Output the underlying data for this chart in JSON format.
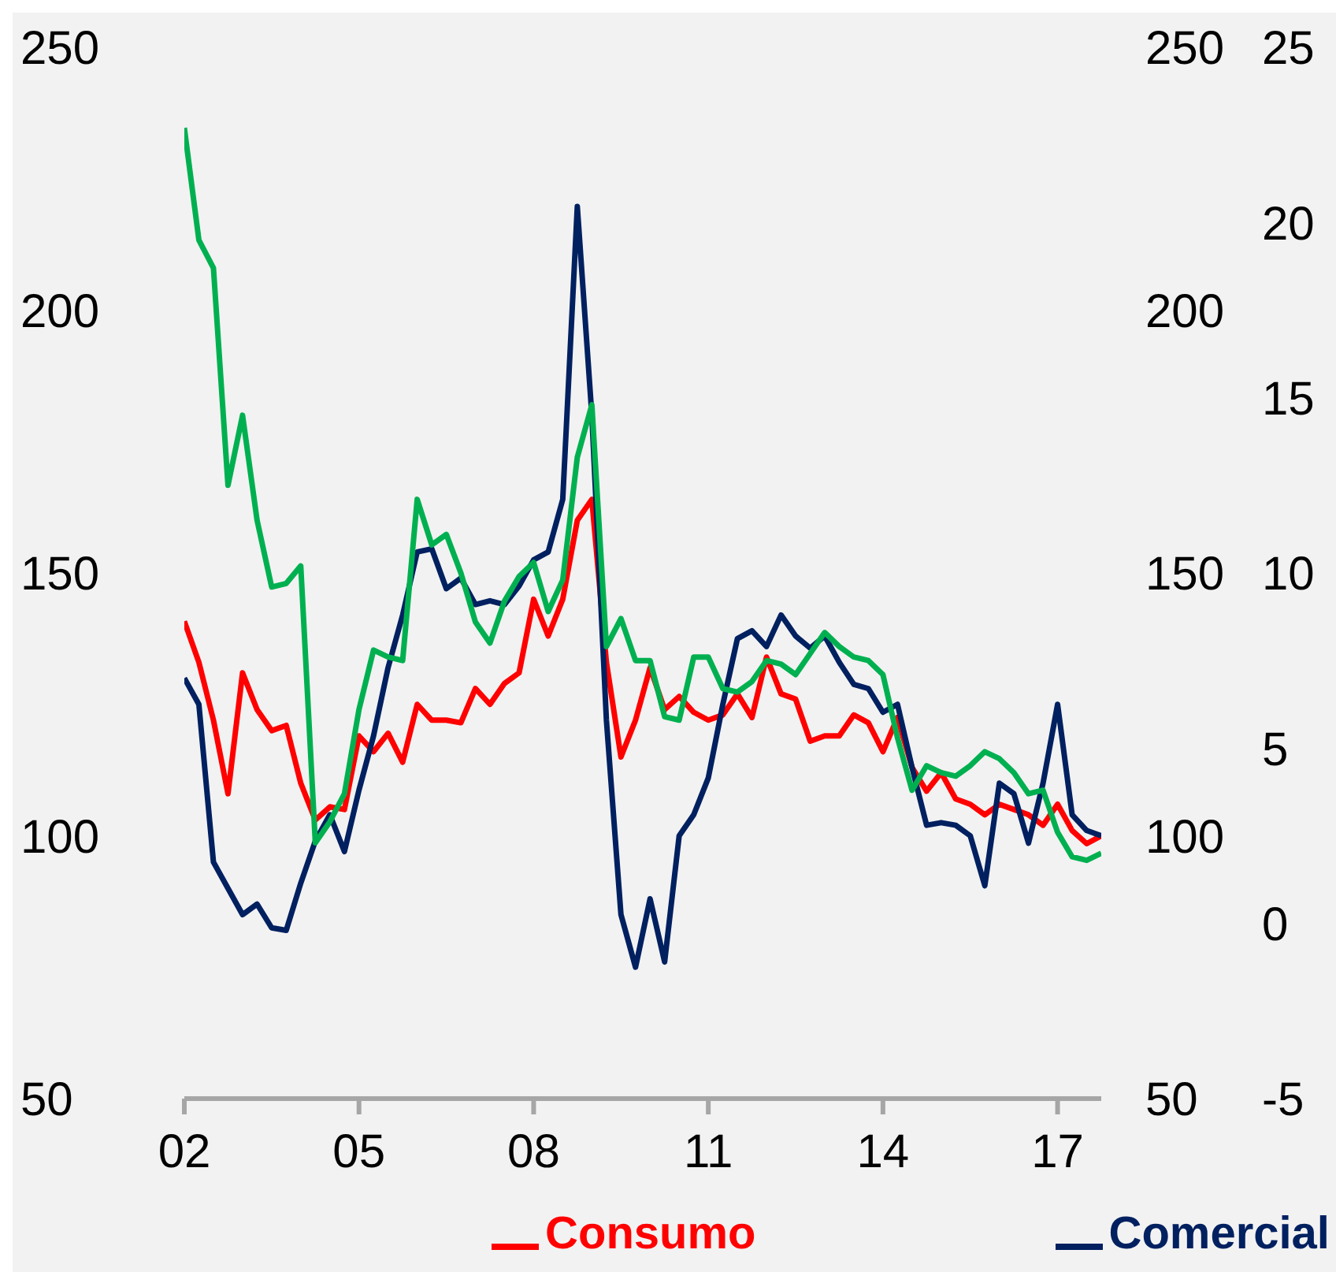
{
  "chart_data": {
    "type": "line",
    "x": [
      2002,
      2002.25,
      2002.5,
      2002.75,
      2003,
      2003.25,
      2003.5,
      2003.75,
      2004,
      2004.25,
      2004.5,
      2004.75,
      2005,
      2005.25,
      2005.5,
      2005.75,
      2006,
      2006.25,
      2006.5,
      2006.75,
      2007,
      2007.25,
      2007.5,
      2007.75,
      2008,
      2008.25,
      2008.5,
      2008.75,
      2009,
      2009.25,
      2009.5,
      2009.75,
      2010,
      2010.25,
      2010.5,
      2010.75,
      2011,
      2011.25,
      2011.5,
      2011.75,
      2012,
      2012.25,
      2012.5,
      2012.75,
      2013,
      2013.25,
      2013.5,
      2013.75,
      2014,
      2014.25,
      2014.5,
      2014.75,
      2015,
      2015.25,
      2015.5,
      2015.75,
      2016,
      2016.25,
      2016.5,
      2016.75,
      2017,
      2017.25,
      2017.5,
      2017.75
    ],
    "series": [
      {
        "name": "Consumo",
        "color": "#ff0000",
        "axis": "y",
        "values": [
          140.8,
          133,
          122,
          108,
          131,
          124,
          120,
          121,
          110,
          103,
          105.5,
          105,
          119,
          116,
          119.5,
          114,
          125,
          122,
          122,
          121.5,
          128,
          125,
          129,
          131,
          145,
          138,
          145,
          160,
          164,
          133,
          115,
          122,
          132,
          124,
          126.5,
          123.5,
          122,
          123,
          127,
          122.5,
          134,
          127,
          126,
          118,
          119,
          119,
          123,
          121.5,
          116,
          122.5,
          113,
          108.5,
          112,
          107,
          106,
          104,
          106,
          105,
          104,
          102,
          106,
          101,
          98.5,
          100
        ]
      },
      {
        "name": "Comercial",
        "color": "#002060",
        "axis": "y2",
        "values": [
          130,
          125,
          95,
          90,
          85,
          87,
          82.5,
          82,
          91,
          99,
          104,
          97,
          108.7,
          119,
          132,
          142,
          154,
          154.6,
          147,
          149,
          144,
          144.7,
          144,
          147.5,
          152.5,
          154,
          164,
          219.7,
          180,
          122,
          85,
          75,
          88,
          76,
          100,
          104,
          111,
          125,
          137.5,
          139,
          136,
          142,
          138,
          135.7,
          138,
          133,
          128.8,
          128,
          123.5,
          125,
          113,
          102,
          102.5,
          102,
          100,
          90.5,
          110,
          108,
          98.6,
          110,
          125,
          104,
          101,
          100
        ]
      },
      {
        "color": "#00b050",
        "axis": "y3",
        "values": [
          22.7,
          19.5,
          18.7,
          12.5,
          14.5,
          11.5,
          9.6,
          9.7,
          10.2,
          2.3,
          2.9,
          3.7,
          6.1,
          7.8,
          7.6,
          7.5,
          12.1,
          10.8,
          11.1,
          10.0,
          8.6,
          8.0,
          9.2,
          9.9,
          10.3,
          8.9,
          9.8,
          13.3,
          14.8,
          7.9,
          8.7,
          7.5,
          7.5,
          5.9,
          5.8,
          7.6,
          7.6,
          6.7,
          6.6,
          6.9,
          7.5,
          7.4,
          7.1,
          7.7,
          8.3,
          7.9,
          7.6,
          7.5,
          7.1,
          5.3,
          3.8,
          4.5,
          4.3,
          4.2,
          4.5,
          4.9,
          4.7,
          4.3,
          3.7,
          3.8,
          2.6,
          1.9,
          1.8,
          2.0
        ]
      }
    ],
    "xlim": [
      2002,
      2017.75
    ],
    "xticks": [
      {
        "value": 2002,
        "label": "02"
      },
      {
        "value": 2005,
        "label": "05"
      },
      {
        "value": 2008,
        "label": "08"
      },
      {
        "value": 2011,
        "label": "11"
      },
      {
        "value": 2014,
        "label": "14"
      },
      {
        "value": 2017,
        "label": "17"
      }
    ],
    "ylim": [
      50,
      250
    ],
    "yticks": [
      50,
      100,
      150,
      200,
      250
    ],
    "y2lim": [
      50,
      250
    ],
    "y2ticks": [
      50,
      100,
      150,
      200,
      250
    ],
    "y3lim": [
      -5,
      25
    ],
    "y3ticks": [
      -5,
      0,
      5,
      10,
      15,
      20,
      25
    ],
    "grid": false,
    "legend": "bottom",
    "marker": "none",
    "line_style": "solid"
  }
}
